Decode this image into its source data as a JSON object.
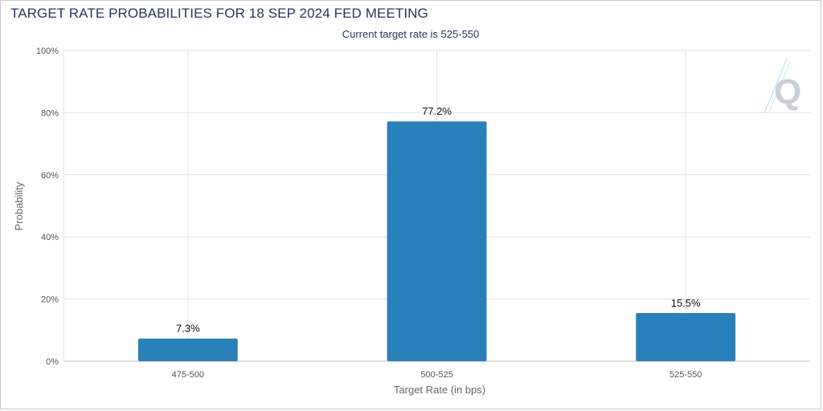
{
  "chart_data": {
    "type": "bar",
    "title": "TARGET RATE PROBABILITIES FOR 18 SEP 2024 FED MEETING",
    "subtitle": "Current target rate is 525-550",
    "xlabel": "Target Rate (in bps)",
    "ylabel": "Probability",
    "categories": [
      "475-500",
      "500-525",
      "525-550"
    ],
    "values": [
      7.3,
      77.2,
      15.5
    ],
    "data_labels": [
      "7.3%",
      "77.2%",
      "15.5%"
    ],
    "ylim": [
      0,
      100
    ],
    "yticks": [
      "0%",
      "20%",
      "40%",
      "60%",
      "80%",
      "100%"
    ],
    "grid": true,
    "legend": "none",
    "bar_color": "#2980b9",
    "logo_icon": "q-logo-icon"
  }
}
